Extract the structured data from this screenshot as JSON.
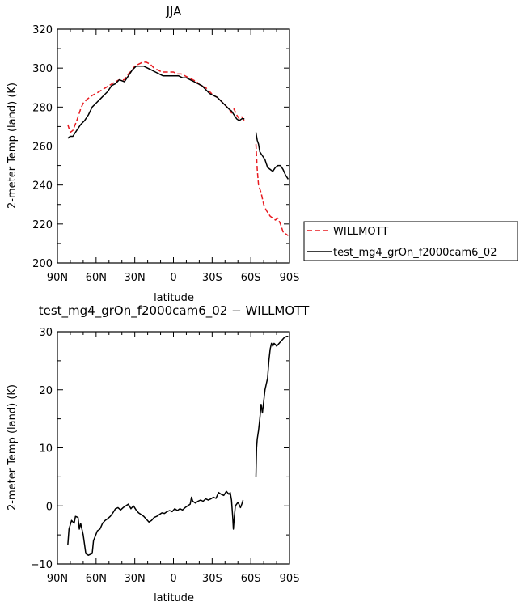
{
  "chart_data": [
    {
      "type": "line",
      "title": "JJA",
      "xlabel": "latitude",
      "ylabel": "2-meter Temp (land) (K)",
      "xlim": [
        90,
        -90
      ],
      "ylim": [
        200,
        320
      ],
      "xtick_values": [
        90,
        60,
        30,
        0,
        -30,
        -60,
        -90
      ],
      "xtick_labels": [
        "90N",
        "60N",
        "30N",
        "0",
        "30S",
        "60S",
        "90S"
      ],
      "ytick_values": [
        200,
        220,
        240,
        260,
        280,
        300,
        320
      ],
      "ytick_labels": [
        "200",
        "220",
        "240",
        "260",
        "280",
        "300",
        "320"
      ],
      "legend_position": "right",
      "series": [
        {
          "name": "WILLMOTT",
          "color": "#e8191f",
          "dash": "dashed",
          "segments": [
            [
              [
                82,
                271
              ],
              [
                80,
                267
              ],
              [
                78,
                268
              ],
              [
                75,
                273
              ],
              [
                72,
                279
              ],
              [
                70,
                282
              ],
              [
                67,
                284
              ],
              [
                63,
                286
              ],
              [
                60,
                287
              ],
              [
                55,
                289
              ],
              [
                50,
                291
              ],
              [
                45,
                293
              ],
              [
                42,
                294
              ],
              [
                38,
                294
              ],
              [
                35,
                297
              ],
              [
                32,
                299
              ],
              [
                30,
                301
              ],
              [
                27,
                302
              ],
              [
                24,
                303
              ],
              [
                21,
                303
              ],
              [
                18,
                302
              ],
              [
                15,
                300
              ],
              [
                12,
                299
              ],
              [
                9,
                298
              ],
              [
                6,
                298
              ],
              [
                3,
                298
              ],
              [
                0,
                298
              ],
              [
                -3,
                297
              ],
              [
                -6,
                297
              ],
              [
                -9,
                296
              ],
              [
                -12,
                295
              ],
              [
                -15,
                294
              ],
              [
                -18,
                293
              ],
              [
                -21,
                291
              ],
              [
                -25,
                290
              ],
              [
                -28,
                288
              ],
              [
                -31,
                286
              ],
              [
                -34,
                285
              ],
              [
                -37,
                283
              ],
              [
                -40,
                281
              ],
              [
                -43,
                279
              ],
              [
                -45,
                277
              ],
              [
                -47,
                279
              ],
              [
                -49,
                276
              ],
              [
                -51,
                274
              ],
              [
                -53,
                275
              ],
              [
                -55,
                273
              ]
            ],
            [
              [
                -64,
                261
              ],
              [
                -65,
                248
              ],
              [
                -66,
                240
              ],
              [
                -68,
                236
              ],
              [
                -70,
                230
              ],
              [
                -72,
                227
              ],
              [
                -75,
                224
              ],
              [
                -77,
                223
              ],
              [
                -79,
                222
              ],
              [
                -81,
                223
              ],
              [
                -83,
                220
              ],
              [
                -85,
                216
              ],
              [
                -87,
                215
              ],
              [
                -89,
                214
              ]
            ]
          ]
        },
        {
          "name": "test_mg4_grOn_f2000cam6_02",
          "color": "#000000",
          "dash": "solid",
          "segments": [
            [
              [
                82,
                264
              ],
              [
                80,
                265
              ],
              [
                78,
                265
              ],
              [
                75,
                268
              ],
              [
                72,
                271
              ],
              [
                69,
                273
              ],
              [
                66,
                276
              ],
              [
                63,
                280
              ],
              [
                60,
                282
              ],
              [
                57,
                284
              ],
              [
                54,
                286
              ],
              [
                51,
                288
              ],
              [
                48,
                291
              ],
              [
                45,
                292
              ],
              [
                42,
                294
              ],
              [
                38,
                293
              ],
              [
                35,
                296
              ],
              [
                32,
                299
              ],
              [
                29,
                301
              ],
              [
                26,
                301
              ],
              [
                23,
                301
              ],
              [
                20,
                300
              ],
              [
                17,
                299
              ],
              [
                14,
                298
              ],
              [
                11,
                297
              ],
              [
                8,
                296
              ],
              [
                5,
                296
              ],
              [
                2,
                296
              ],
              [
                -1,
                296
              ],
              [
                -4,
                296
              ],
              [
                -7,
                295
              ],
              [
                -10,
                295
              ],
              [
                -13,
                294
              ],
              [
                -16,
                293
              ],
              [
                -19,
                292
              ],
              [
                -22,
                291
              ],
              [
                -25,
                289
              ],
              [
                -28,
                287
              ],
              [
                -31,
                286
              ],
              [
                -34,
                285
              ],
              [
                -37,
                283
              ],
              [
                -40,
                281
              ],
              [
                -43,
                279
              ],
              [
                -45,
                278
              ],
              [
                -47,
                276
              ],
              [
                -49,
                274
              ],
              [
                -51,
                273
              ],
              [
                -53,
                274
              ],
              [
                -55,
                274
              ]
            ],
            [
              [
                -64,
                267
              ],
              [
                -65,
                263
              ],
              [
                -66,
                261
              ],
              [
                -67,
                257
              ],
              [
                -69,
                255
              ],
              [
                -71,
                253
              ],
              [
                -73,
                249
              ],
              [
                -75,
                248
              ],
              [
                -77,
                247
              ],
              [
                -79,
                249
              ],
              [
                -81,
                250
              ],
              [
                -83,
                250
              ],
              [
                -85,
                248
              ],
              [
                -87,
                245
              ],
              [
                -89,
                243
              ]
            ]
          ]
        }
      ]
    },
    {
      "type": "line",
      "title": "test_mg4_grOn_f2000cam6_02 − WILLMOTT",
      "xlabel": "latitude",
      "ylabel": "2-meter Temp (land) (K)",
      "xlim": [
        90,
        -90
      ],
      "ylim": [
        -10,
        30
      ],
      "xtick_values": [
        90,
        60,
        30,
        0,
        -30,
        -60,
        -90
      ],
      "xtick_labels": [
        "90N",
        "60N",
        "30N",
        "0",
        "30S",
        "60S",
        "90S"
      ],
      "ytick_values": [
        -10,
        0,
        10,
        20,
        30
      ],
      "ytick_labels": [
        "−10",
        "0",
        "10",
        "20",
        "30"
      ],
      "series": [
        {
          "name": "",
          "color": "#000000",
          "dash": "solid",
          "segments": [
            [
              [
                82,
                -6.8
              ],
              [
                81,
                -4
              ],
              [
                79,
                -2.5
              ],
              [
                77,
                -3
              ],
              [
                76,
                -1.8
              ],
              [
                74,
                -2
              ],
              [
                73,
                -4
              ],
              [
                72,
                -3
              ],
              [
                70,
                -5
              ],
              [
                68,
                -8.2
              ],
              [
                66,
                -8.5
              ],
              [
                63,
                -8.2
              ],
              [
                62,
                -6
              ],
              [
                59,
                -4.3
              ],
              [
                57,
                -4
              ],
              [
                55,
                -3
              ],
              [
                53,
                -2.5
              ],
              [
                51,
                -2.2
              ],
              [
                49,
                -1.8
              ],
              [
                47,
                -1.2
              ],
              [
                45,
                -0.5
              ],
              [
                43,
                -0.3
              ],
              [
                41,
                -0.7
              ],
              [
                39,
                -0.3
              ],
              [
                37,
                0
              ],
              [
                35,
                0.3
              ],
              [
                33,
                -0.5
              ],
              [
                31,
                0
              ],
              [
                29,
                -0.7
              ],
              [
                27,
                -1.2
              ],
              [
                25,
                -1.5
              ],
              [
                23,
                -1.8
              ],
              [
                21,
                -2.3
              ],
              [
                19,
                -2.8
              ],
              [
                17,
                -2.5
              ],
              [
                15,
                -2
              ],
              [
                13,
                -1.8
              ],
              [
                11,
                -1.5
              ],
              [
                9,
                -1.2
              ],
              [
                7,
                -1.3
              ],
              [
                5,
                -1
              ],
              [
                3,
                -0.8
              ],
              [
                1,
                -1.0
              ],
              [
                -1,
                -0.5
              ],
              [
                -3,
                -0.8
              ],
              [
                -5,
                -0.5
              ],
              [
                -7,
                -0.7
              ],
              [
                -9,
                -0.3
              ],
              [
                -11,
                0
              ],
              [
                -13,
                0.3
              ],
              [
                -14,
                1.5
              ],
              [
                -15,
                0.8
              ],
              [
                -17,
                0.5
              ],
              [
                -19,
                0.8
              ],
              [
                -21,
                1
              ],
              [
                -23,
                0.8
              ],
              [
                -25,
                1.2
              ],
              [
                -27,
                1
              ],
              [
                -29,
                1.2
              ],
              [
                -31,
                1.5
              ],
              [
                -33,
                1.3
              ],
              [
                -35,
                2.3
              ],
              [
                -37,
                2
              ],
              [
                -39,
                1.8
              ],
              [
                -41,
                2.5
              ],
              [
                -43,
                2
              ],
              [
                -44,
                2.3
              ],
              [
                -45,
                1
              ],
              [
                -46,
                -2
              ],
              [
                -46.5,
                -4
              ],
              [
                -47,
                -2.5
              ],
              [
                -48,
                0
              ],
              [
                -50,
                0.6
              ],
              [
                -51,
                0.2
              ],
              [
                -52,
                -0.3
              ],
              [
                -53,
                0.3
              ],
              [
                -54,
                1
              ]
            ],
            [
              [
                -64,
                5
              ],
              [
                -64.5,
                10
              ],
              [
                -65,
                11.5
              ],
              [
                -66,
                13
              ],
              [
                -67,
                15
              ],
              [
                -68,
                17.5
              ],
              [
                -69,
                16
              ],
              [
                -70,
                18
              ],
              [
                -71,
                20
              ],
              [
                -72,
                21
              ],
              [
                -73,
                22
              ],
              [
                -74,
                25
              ],
              [
                -75,
                27
              ],
              [
                -76,
                28
              ],
              [
                -77,
                27.5
              ],
              [
                -78,
                28
              ],
              [
                -79,
                27.8
              ],
              [
                -80,
                27.5
              ],
              [
                -82,
                28
              ],
              [
                -84,
                28.5
              ],
              [
                -86,
                29
              ],
              [
                -88,
                29.2
              ],
              [
                -89,
                29.2
              ]
            ]
          ]
        }
      ]
    }
  ]
}
